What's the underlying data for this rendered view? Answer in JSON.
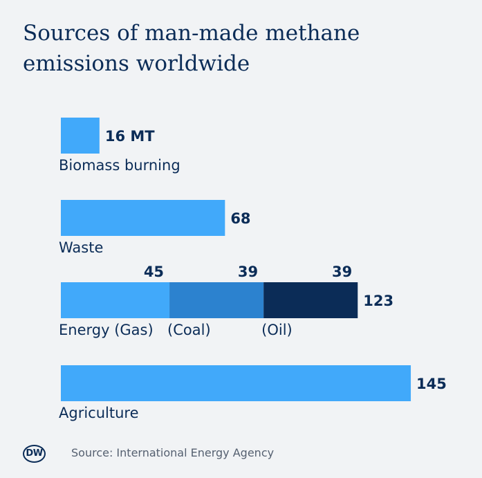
{
  "title": "Sources of man-made methane emissions worldwide",
  "source": "Source: International Energy Agency",
  "logo": "DW",
  "colors": {
    "light": "#41a9fa",
    "medium": "#2c82cf",
    "dark": "#0b2c57",
    "text": "#0b2c57"
  },
  "chart_data": {
    "type": "bar",
    "orientation": "horizontal",
    "unit": "MT",
    "rows": [
      {
        "label": "Biomass burning",
        "value": 16,
        "value_label": "16 MT",
        "segments": [
          {
            "label": "",
            "value": 16,
            "color": "#41a9fa"
          }
        ]
      },
      {
        "label": "Waste",
        "value": 68,
        "value_label": "68",
        "segments": [
          {
            "label": "",
            "value": 68,
            "color": "#41a9fa"
          }
        ]
      },
      {
        "label": "",
        "value": 123,
        "value_label": "123",
        "segments": [
          {
            "label": "Energy (Gas)",
            "value": 45,
            "value_label": "45",
            "color": "#41a9fa"
          },
          {
            "label": "(Coal)",
            "value": 39,
            "value_label": "39",
            "color": "#2c82cf"
          },
          {
            "label": "(Oil)",
            "value": 39,
            "value_label": "39",
            "color": "#0b2c57"
          }
        ]
      },
      {
        "label": "Agriculture",
        "value": 145,
        "value_label": "145",
        "segments": [
          {
            "label": "",
            "value": 145,
            "color": "#41a9fa"
          }
        ]
      }
    ]
  }
}
